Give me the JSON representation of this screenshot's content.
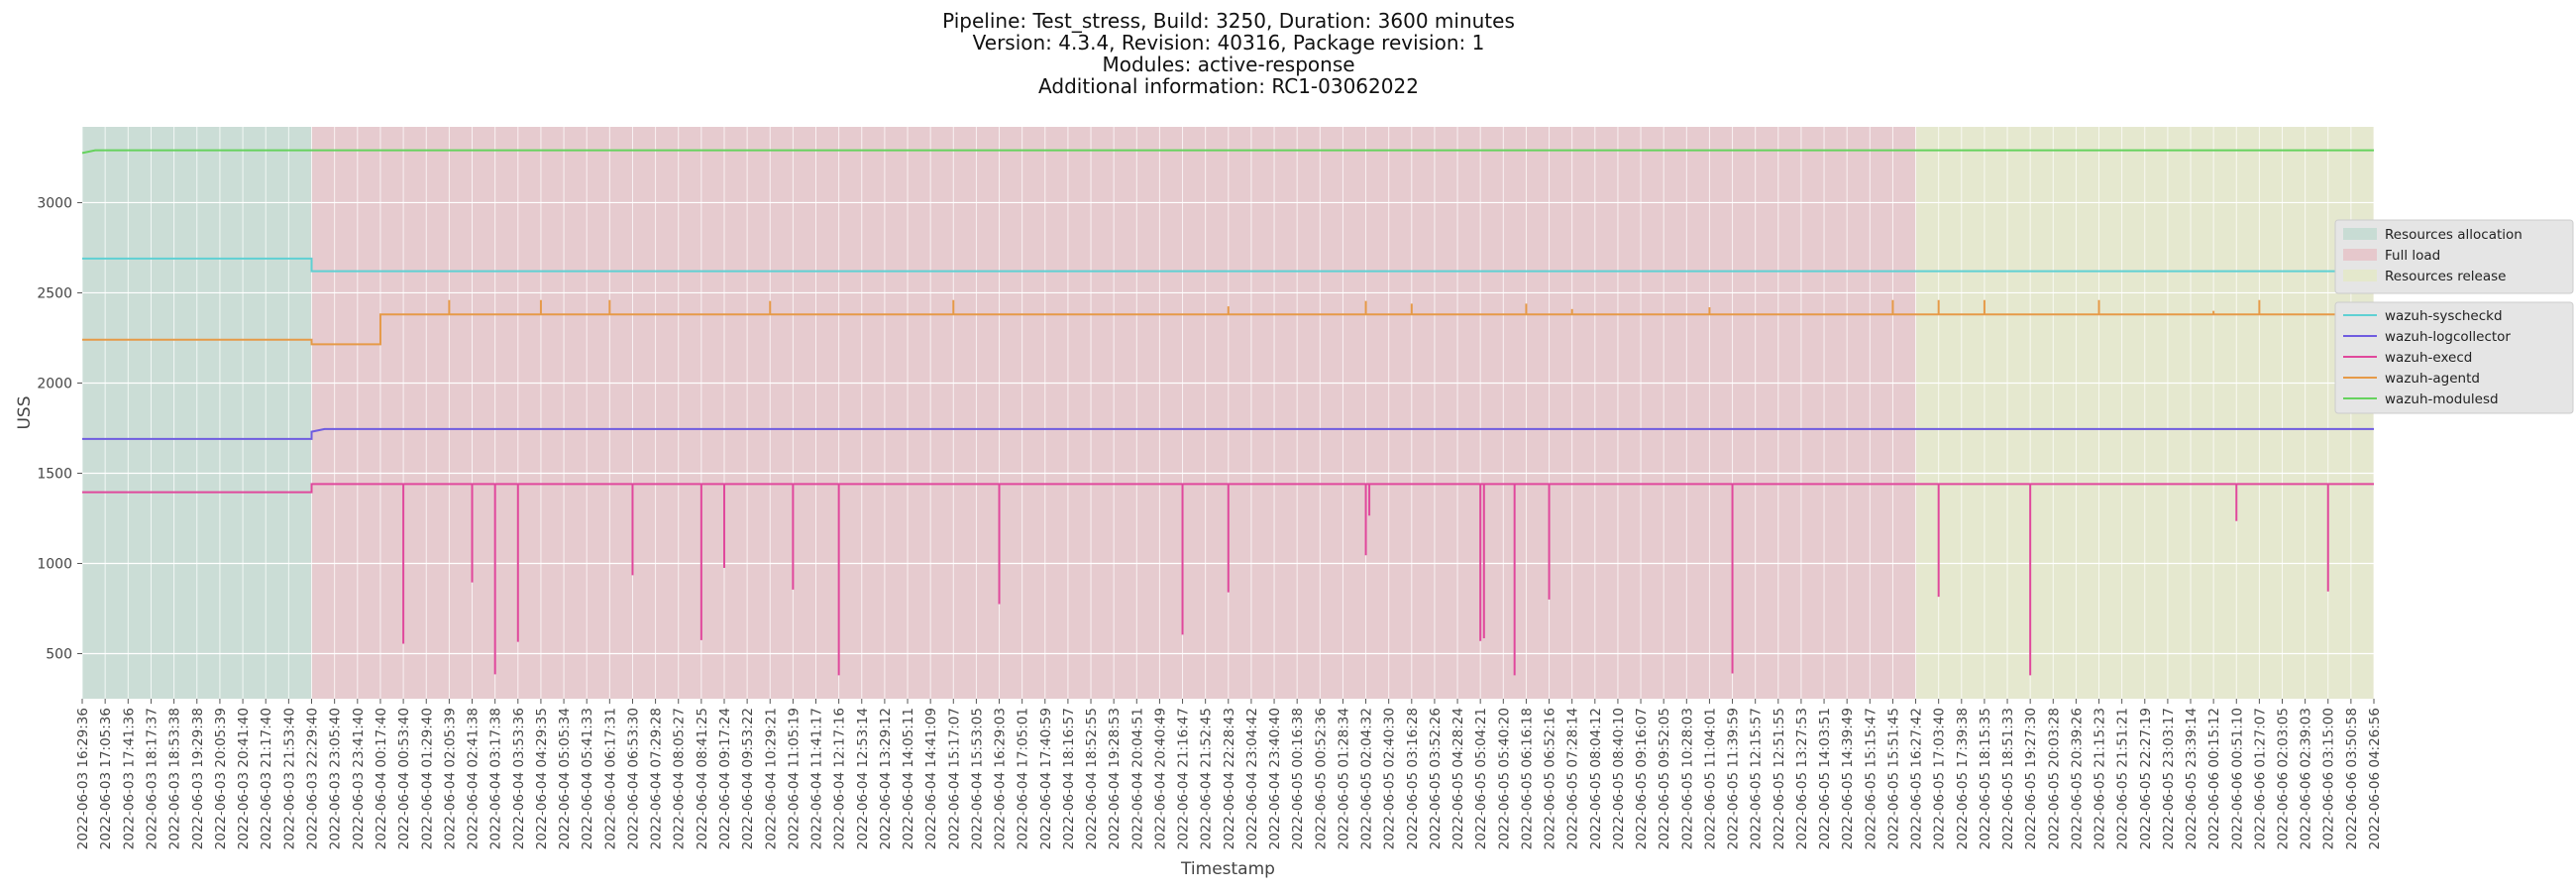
{
  "title_lines": [
    "Pipeline: Test_stress, Build: 3250, Duration: 3600 minutes",
    "Version: 4.3.4, Revision: 40316, Package revision: 1",
    "Modules: active-response",
    "Additional information: RC1-03062022"
  ],
  "colors": {
    "background": "#ffffff",
    "plot_background": "#e5e5e5",
    "grid": "#ffffff",
    "phase_allocation": "#c8dcd4",
    "phase_full_load": "#e6c8cc",
    "phase_release": "#e4e8cc",
    "syscheckd": "#5fd0d3",
    "logcollector": "#6f5ce0",
    "execd": "#e0489c",
    "agentd": "#e69a48",
    "modulesd": "#66d25e"
  },
  "chart_data": {
    "type": "line",
    "xlabel": "Timestamp",
    "ylabel": "USS",
    "ylim": [
      250,
      3420
    ],
    "yticks": [
      500,
      1000,
      1500,
      2000,
      2500,
      3000
    ],
    "grid": true,
    "legend_position": "right",
    "x_start": "2022-06-03 16:29:36",
    "x_end": "2022-06-06 04:26:56",
    "xticks": [
      "2022-06-03 16:29:36",
      "2022-06-03 17:05:36",
      "2022-06-03 17:41:36",
      "2022-06-03 18:17:37",
      "2022-06-03 18:53:38",
      "2022-06-03 19:29:38",
      "2022-06-03 20:05:39",
      "2022-06-03 20:41:40",
      "2022-06-03 21:17:40",
      "2022-06-03 21:53:40",
      "2022-06-03 22:29:40",
      "2022-06-03 23:05:40",
      "2022-06-03 23:41:40",
      "2022-06-04 00:17:40",
      "2022-06-04 00:53:40",
      "2022-06-04 01:29:40",
      "2022-06-04 02:05:39",
      "2022-06-04 02:41:38",
      "2022-06-04 03:17:38",
      "2022-06-04 03:53:36",
      "2022-06-04 04:29:35",
      "2022-06-04 05:05:34",
      "2022-06-04 05:41:33",
      "2022-06-04 06:17:31",
      "2022-06-04 06:53:30",
      "2022-06-04 07:29:28",
      "2022-06-04 08:05:27",
      "2022-06-04 08:41:25",
      "2022-06-04 09:17:24",
      "2022-06-04 09:53:22",
      "2022-06-04 10:29:21",
      "2022-06-04 11:05:19",
      "2022-06-04 11:41:17",
      "2022-06-04 12:17:16",
      "2022-06-04 12:53:14",
      "2022-06-04 13:29:12",
      "2022-06-04 14:05:11",
      "2022-06-04 14:41:09",
      "2022-06-04 15:17:07",
      "2022-06-04 15:53:05",
      "2022-06-04 16:29:03",
      "2022-06-04 17:05:01",
      "2022-06-04 17:40:59",
      "2022-06-04 18:16:57",
      "2022-06-04 18:52:55",
      "2022-06-04 19:28:53",
      "2022-06-04 20:04:51",
      "2022-06-04 20:40:49",
      "2022-06-04 21:16:47",
      "2022-06-04 21:52:45",
      "2022-06-04 22:28:43",
      "2022-06-04 23:04:42",
      "2022-06-04 23:40:40",
      "2022-06-05 00:16:38",
      "2022-06-05 00:52:36",
      "2022-06-05 01:28:34",
      "2022-06-05 02:04:32",
      "2022-06-05 02:40:30",
      "2022-06-05 03:16:28",
      "2022-06-05 03:52:26",
      "2022-06-05 04:28:24",
      "2022-06-05 05:04:21",
      "2022-06-05 05:40:20",
      "2022-06-05 06:16:18",
      "2022-06-05 06:52:16",
      "2022-06-05 07:28:14",
      "2022-06-05 08:04:12",
      "2022-06-05 08:40:10",
      "2022-06-05 09:16:07",
      "2022-06-05 09:52:05",
      "2022-06-05 10:28:03",
      "2022-06-05 11:04:01",
      "2022-06-05 11:39:59",
      "2022-06-05 12:15:57",
      "2022-06-05 12:51:55",
      "2022-06-05 13:27:53",
      "2022-06-05 14:03:51",
      "2022-06-05 14:39:49",
      "2022-06-05 15:15:47",
      "2022-06-05 15:51:45",
      "2022-06-05 16:27:42",
      "2022-06-05 17:03:40",
      "2022-06-05 17:39:38",
      "2022-06-05 18:15:35",
      "2022-06-05 18:51:33",
      "2022-06-05 19:27:30",
      "2022-06-05 20:03:28",
      "2022-06-05 20:39:26",
      "2022-06-05 21:15:23",
      "2022-06-05 21:51:21",
      "2022-06-05 22:27:19",
      "2022-06-05 23:03:17",
      "2022-06-05 23:39:14",
      "2022-06-06 00:15:12",
      "2022-06-06 00:51:10",
      "2022-06-06 01:27:07",
      "2022-06-06 02:03:05",
      "2022-06-06 02:39:03",
      "2022-06-06 03:15:00",
      "2022-06-06 03:50:58",
      "2022-06-06 04:26:56"
    ],
    "phases": [
      {
        "name": "Resources allocation",
        "start": "2022-06-03 16:29:36",
        "end": "2022-06-03 22:29:40"
      },
      {
        "name": "Full load",
        "start": "2022-06-03 22:29:40",
        "end": "2022-06-05 16:27:42"
      },
      {
        "name": "Resources release",
        "start": "2022-06-05 16:27:42",
        "end": "2022-06-06 04:26:56"
      }
    ],
    "series": [
      {
        "name": "wazuh-syscheckd",
        "color_key": "syscheckd",
        "points": [
          [
            "2022-06-03 16:29:36",
            2690
          ],
          [
            "2022-06-03 22:29:40",
            2690
          ],
          [
            "2022-06-03 22:29:40",
            2620
          ],
          [
            "2022-06-06 04:26:56",
            2620
          ]
        ]
      },
      {
        "name": "wazuh-logcollector",
        "color_key": "logcollector",
        "points": [
          [
            "2022-06-03 16:29:36",
            1690
          ],
          [
            "2022-06-03 22:29:40",
            1690
          ],
          [
            "2022-06-03 22:29:40",
            1730
          ],
          [
            "2022-06-03 22:50:00",
            1745
          ],
          [
            "2022-06-06 04:26:56",
            1745
          ]
        ]
      },
      {
        "name": "wazuh-execd",
        "color_key": "execd",
        "baseline_points": [
          [
            "2022-06-03 16:29:36",
            1395
          ],
          [
            "2022-06-03 22:29:40",
            1395
          ],
          [
            "2022-06-03 22:29:40",
            1440
          ],
          [
            "2022-06-06 04:26:56",
            1440
          ]
        ],
        "dips": [
          [
            "2022-06-04 00:53:40",
            555
          ],
          [
            "2022-06-04 02:41:38",
            895
          ],
          [
            "2022-06-04 03:17:38",
            385
          ],
          [
            "2022-06-04 03:53:36",
            565
          ],
          [
            "2022-06-04 06:53:30",
            935
          ],
          [
            "2022-06-04 08:41:25",
            575
          ],
          [
            "2022-06-04 09:17:24",
            975
          ],
          [
            "2022-06-04 11:05:19",
            855
          ],
          [
            "2022-06-04 12:17:16",
            380
          ],
          [
            "2022-06-04 16:29:03",
            775
          ],
          [
            "2022-06-04 21:16:47",
            605
          ],
          [
            "2022-06-04 22:28:43",
            840
          ],
          [
            "2022-06-05 02:04:32",
            1045
          ],
          [
            "2022-06-05 02:10:00",
            1265
          ],
          [
            "2022-06-05 05:04:21",
            570
          ],
          [
            "2022-06-05 05:10:00",
            585
          ],
          [
            "2022-06-05 06:52:16",
            800
          ],
          [
            "2022-06-05 05:58:00",
            380
          ],
          [
            "2022-06-05 11:39:59",
            390
          ],
          [
            "2022-06-05 17:03:40",
            815
          ],
          [
            "2022-06-05 19:27:30",
            380
          ],
          [
            "2022-06-06 00:51:10",
            1235
          ],
          [
            "2022-06-06 03:15:00",
            845
          ]
        ]
      },
      {
        "name": "wazuh-agentd",
        "color_key": "agentd",
        "baseline_points": [
          [
            "2022-06-03 16:29:36",
            2240
          ],
          [
            "2022-06-03 22:29:40",
            2240
          ],
          [
            "2022-06-03 22:29:40",
            2215
          ],
          [
            "2022-06-04 00:17:40",
            2215
          ],
          [
            "2022-06-04 00:17:40",
            2380
          ],
          [
            "2022-06-06 04:26:56",
            2380
          ]
        ],
        "spikes": [
          [
            "2022-06-04 02:05:39",
            2460
          ],
          [
            "2022-06-04 04:29:35",
            2460
          ],
          [
            "2022-06-04 06:17:31",
            2460
          ],
          [
            "2022-06-04 10:29:21",
            2455
          ],
          [
            "2022-06-04 15:17:07",
            2460
          ],
          [
            "2022-06-04 22:28:43",
            2425
          ],
          [
            "2022-06-05 02:04:32",
            2455
          ],
          [
            "2022-06-05 03:16:28",
            2440
          ],
          [
            "2022-06-05 06:16:18",
            2440
          ],
          [
            "2022-06-05 07:28:14",
            2410
          ],
          [
            "2022-06-05 11:04:01",
            2420
          ],
          [
            "2022-06-05 15:51:45",
            2460
          ],
          [
            "2022-06-05 17:03:40",
            2460
          ],
          [
            "2022-06-05 18:15:35",
            2460
          ],
          [
            "2022-06-05 21:15:23",
            2460
          ],
          [
            "2022-06-06 00:15:12",
            2400
          ],
          [
            "2022-06-06 01:27:07",
            2460
          ],
          [
            "2022-06-06 03:50:58",
            2450
          ]
        ]
      },
      {
        "name": "wazuh-modulesd",
        "color_key": "modulesd",
        "points": [
          [
            "2022-06-03 16:29:36",
            3275
          ],
          [
            "2022-06-03 16:50:00",
            3290
          ],
          [
            "2022-06-06 04:26:56",
            3290
          ]
        ]
      }
    ]
  }
}
